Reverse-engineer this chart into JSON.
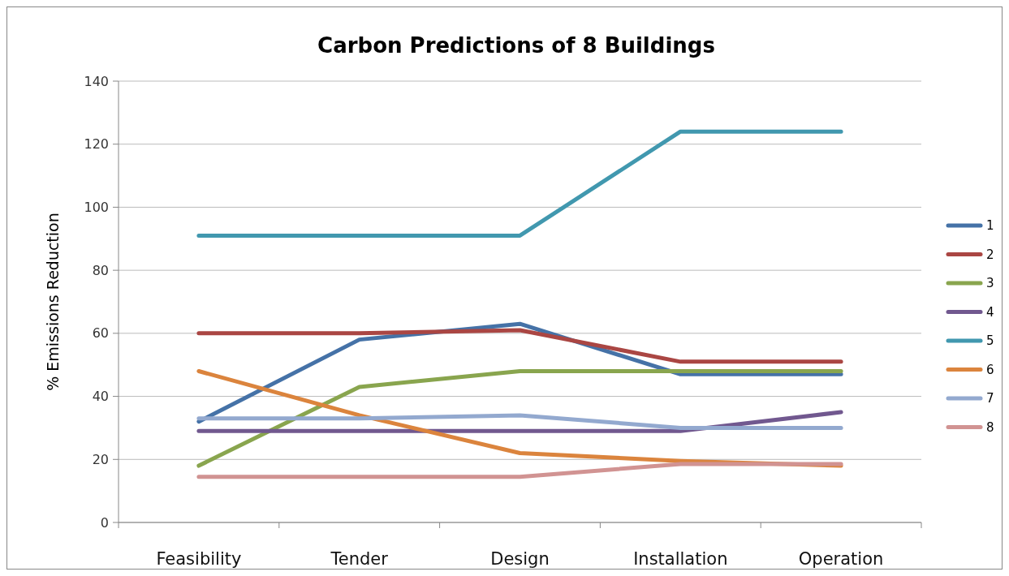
{
  "chart_data": {
    "type": "line",
    "title": "Carbon Predictions of 8 Buildings",
    "ylabel": "% Emissions Reduction",
    "categories": [
      "Feasibility",
      "Tender",
      "Design",
      "Installation",
      "Operation"
    ],
    "ylim": [
      0,
      140
    ],
    "yticks": [
      0,
      20,
      40,
      60,
      80,
      100,
      120,
      140
    ],
    "grid": "y",
    "legend": "right",
    "marker": "none",
    "series": [
      {
        "name": "1",
        "color": "#4572a7",
        "values": [
          32,
          58,
          63,
          47,
          47
        ]
      },
      {
        "name": "2",
        "color": "#aa4643",
        "values": [
          60,
          60,
          61,
          51,
          51
        ]
      },
      {
        "name": "3",
        "color": "#89a54e",
        "values": [
          18,
          43,
          48,
          48,
          48
        ]
      },
      {
        "name": "4",
        "color": "#71588f",
        "values": [
          29,
          29,
          29,
          29,
          35
        ]
      },
      {
        "name": "5",
        "color": "#4198af",
        "values": [
          91,
          91,
          91,
          124,
          124
        ]
      },
      {
        "name": "6",
        "color": "#db843d",
        "values": [
          48,
          34,
          22,
          19.5,
          18
        ]
      },
      {
        "name": "7",
        "color": "#93a9cf",
        "values": [
          33,
          33,
          34,
          30,
          30
        ]
      },
      {
        "name": "8",
        "color": "#d19392",
        "values": [
          14.5,
          14.5,
          14.5,
          18.5,
          18.5
        ]
      }
    ]
  }
}
